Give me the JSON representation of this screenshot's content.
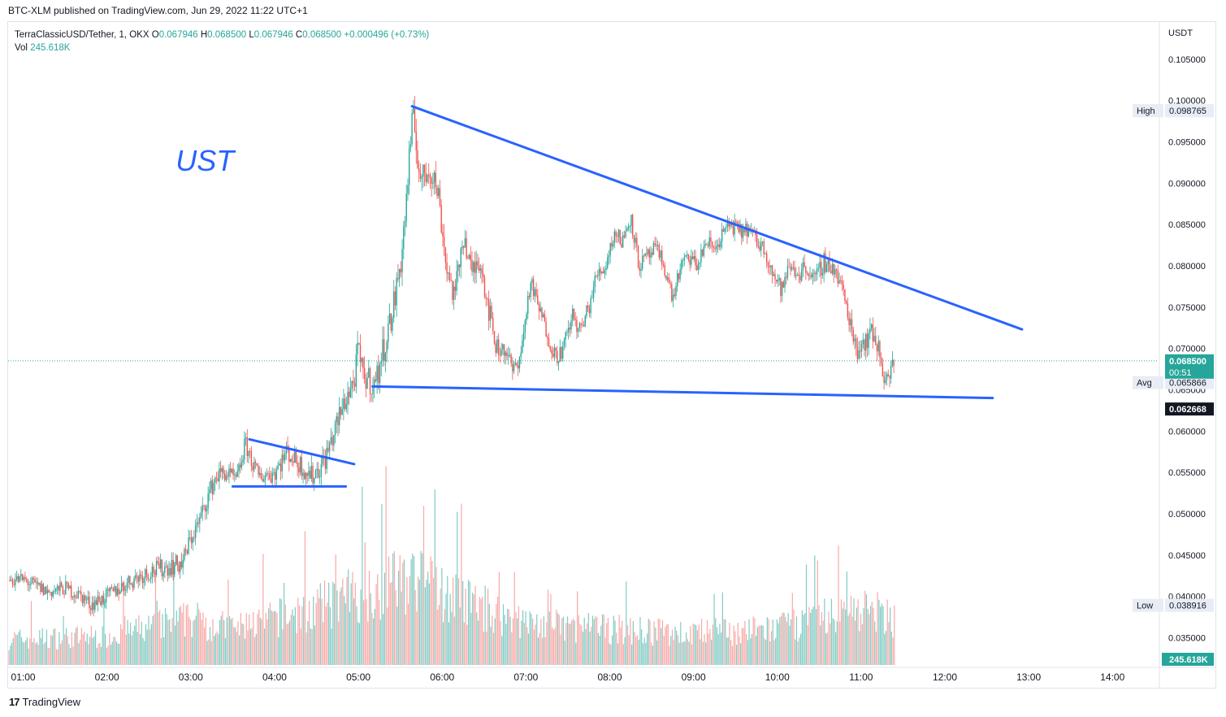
{
  "header": {
    "published": "BTC-XLM published on TradingView.com, Jun 29, 2022 11:22 UTC+1"
  },
  "legend": {
    "symbol": "TerraClassicUSD/Tether, 1, OKX",
    "o_label": "O",
    "o": "0.067946",
    "h_label": "H",
    "h": "0.068500",
    "l_label": "L",
    "l": "0.067946",
    "c_label": "C",
    "c": "0.068500",
    "change": "+0.000496 (+0.73%)",
    "vol_label": "Vol",
    "vol": "245.618K"
  },
  "colors": {
    "up": "#26a69a",
    "down": "#ef5350",
    "drawing": "#2962ff",
    "upVol": "#80cbc4",
    "downVol": "#f7a9a7"
  },
  "chart_data": {
    "type": "candlestick",
    "annotation": "UST",
    "currency": "USDT",
    "ylim": [
      0.0315,
      0.1095
    ],
    "y_ticks": [
      "0.105000",
      "0.100000",
      "0.095000",
      "0.090000",
      "0.085000",
      "0.080000",
      "0.075000",
      "0.070000",
      "0.065000",
      "0.060000",
      "0.055000",
      "0.050000",
      "0.045000",
      "0.040000",
      "0.035000"
    ],
    "x_ticks": [
      "01:00",
      "02:00",
      "03:00",
      "04:00",
      "05:00",
      "06:00",
      "07:00",
      "08:00",
      "09:00",
      "10:00",
      "11:00",
      "12:00",
      "13:00",
      "14:00"
    ],
    "x_range_hours": [
      0.82,
      14.55
    ],
    "price_path": [
      [
        0.83,
        0.042
      ],
      [
        1.0,
        0.042
      ],
      [
        1.3,
        0.0405
      ],
      [
        1.5,
        0.041
      ],
      [
        1.7,
        0.04
      ],
      [
        1.8,
        0.039
      ],
      [
        2.0,
        0.04
      ],
      [
        2.3,
        0.042
      ],
      [
        2.5,
        0.043
      ],
      [
        2.7,
        0.0435
      ],
      [
        2.9,
        0.044
      ],
      [
        3.0,
        0.047
      ],
      [
        3.1,
        0.049
      ],
      [
        3.2,
        0.052
      ],
      [
        3.3,
        0.0545
      ],
      [
        3.4,
        0.055
      ],
      [
        3.55,
        0.054
      ],
      [
        3.65,
        0.0585
      ],
      [
        3.8,
        0.0545
      ],
      [
        4.0,
        0.055
      ],
      [
        4.15,
        0.0575
      ],
      [
        4.3,
        0.056
      ],
      [
        4.45,
        0.0545
      ],
      [
        4.6,
        0.0565
      ],
      [
        4.75,
        0.061
      ],
      [
        4.85,
        0.064
      ],
      [
        4.95,
        0.066
      ],
      [
        5.0,
        0.07
      ],
      [
        5.05,
        0.0665
      ],
      [
        5.1,
        0.0665
      ],
      [
        5.2,
        0.0655
      ],
      [
        5.3,
        0.07
      ],
      [
        5.4,
        0.074
      ],
      [
        5.5,
        0.08
      ],
      [
        5.55,
        0.085
      ],
      [
        5.6,
        0.092
      ],
      [
        5.65,
        0.098
      ],
      [
        5.75,
        0.09
      ],
      [
        5.85,
        0.092
      ],
      [
        5.95,
        0.089
      ],
      [
        6.05,
        0.08
      ],
      [
        6.15,
        0.076
      ],
      [
        6.25,
        0.084
      ],
      [
        6.35,
        0.079
      ],
      [
        6.45,
        0.081
      ],
      [
        6.55,
        0.075
      ],
      [
        6.65,
        0.07
      ],
      [
        6.75,
        0.07
      ],
      [
        6.85,
        0.067
      ],
      [
        6.95,
        0.07
      ],
      [
        7.05,
        0.078
      ],
      [
        7.15,
        0.075
      ],
      [
        7.25,
        0.072
      ],
      [
        7.35,
        0.069
      ],
      [
        7.45,
        0.07
      ],
      [
        7.55,
        0.074
      ],
      [
        7.65,
        0.072
      ],
      [
        7.75,
        0.075
      ],
      [
        7.85,
        0.079
      ],
      [
        7.95,
        0.08
      ],
      [
        8.05,
        0.084
      ],
      [
        8.15,
        0.083
      ],
      [
        8.25,
        0.086
      ],
      [
        8.35,
        0.08
      ],
      [
        8.45,
        0.081
      ],
      [
        8.55,
        0.082
      ],
      [
        8.65,
        0.08
      ],
      [
        8.75,
        0.076
      ],
      [
        8.85,
        0.08
      ],
      [
        8.95,
        0.081
      ],
      [
        9.05,
        0.08
      ],
      [
        9.15,
        0.083
      ],
      [
        9.25,
        0.082
      ],
      [
        9.35,
        0.084
      ],
      [
        9.45,
        0.085
      ],
      [
        9.55,
        0.084
      ],
      [
        9.65,
        0.0845
      ],
      [
        9.75,
        0.083
      ],
      [
        9.85,
        0.082
      ],
      [
        9.95,
        0.079
      ],
      [
        10.05,
        0.077
      ],
      [
        10.15,
        0.08
      ],
      [
        10.25,
        0.079
      ],
      [
        10.35,
        0.08
      ],
      [
        10.45,
        0.078
      ],
      [
        10.55,
        0.0805
      ],
      [
        10.65,
        0.08
      ],
      [
        10.75,
        0.078
      ],
      [
        10.85,
        0.074
      ],
      [
        10.95,
        0.07
      ],
      [
        11.05,
        0.071
      ],
      [
        11.15,
        0.072
      ],
      [
        11.25,
        0.068
      ],
      [
        11.3,
        0.066
      ],
      [
        11.35,
        0.067
      ],
      [
        11.4,
        0.0685
      ]
    ],
    "volume_path": [
      [
        0.83,
        0.25
      ],
      [
        2.0,
        0.28
      ],
      [
        3.0,
        0.45
      ],
      [
        3.5,
        0.35
      ],
      [
        4.5,
        0.55
      ],
      [
        5.0,
        0.7
      ],
      [
        5.6,
        0.85
      ],
      [
        6.0,
        0.7
      ],
      [
        7.0,
        0.4
      ],
      [
        8.0,
        0.35
      ],
      [
        9.0,
        0.3
      ],
      [
        10.0,
        0.35
      ],
      [
        11.0,
        0.55
      ],
      [
        11.4,
        0.45
      ]
    ],
    "trendlines": [
      {
        "from": [
          3.7,
          0.059
        ],
        "to": [
          4.95,
          0.056
        ]
      },
      {
        "from": [
          3.5,
          0.0533
        ],
        "to": [
          4.85,
          0.0533
        ]
      },
      {
        "from": [
          5.17,
          0.0654
        ],
        "to": [
          12.57,
          0.064
        ]
      },
      {
        "from": [
          5.64,
          0.0993
        ],
        "to": [
          12.92,
          0.0723
        ]
      }
    ],
    "markers": {
      "high_label": "High",
      "high": "0.098765",
      "low_label": "Low",
      "low": "0.038916",
      "last": "0.068500",
      "countdown": "00:51",
      "avg_label": "Avg",
      "avg": "0.065866",
      "crosshair": "0.062668",
      "volume": "245.618K"
    }
  },
  "footer": {
    "brand": "TradingView"
  }
}
